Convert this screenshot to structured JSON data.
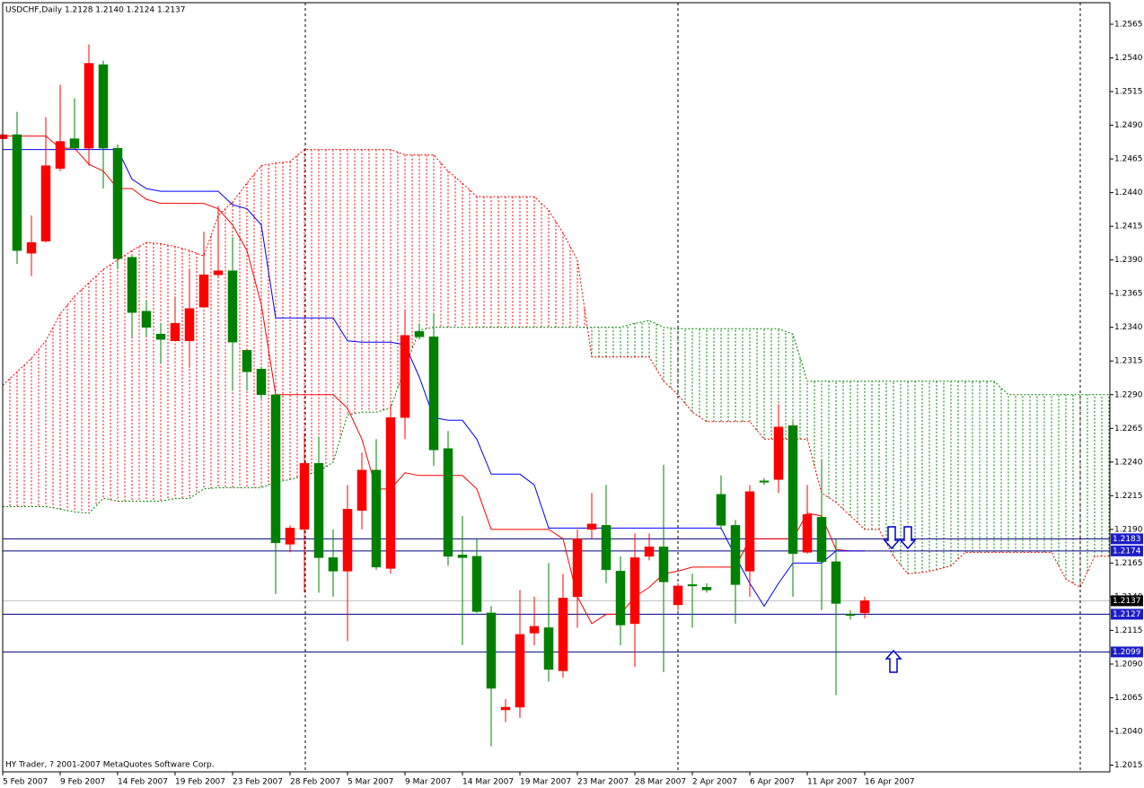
{
  "chart_data": {
    "type": "candlestick",
    "title": "USDCHF,Daily  1.2128 1.2140 1.2124 1.2137",
    "footer": "HY Trader, ? 2001-2007 MetaQuotes Software Corp.",
    "categories": [
      "5 Feb 2007",
      null,
      null,
      null,
      "9 Feb 2007",
      null,
      null,
      null,
      "14 Feb 2007",
      null,
      null,
      null,
      "19 Feb 2007",
      null,
      null,
      null,
      "23 Feb 2007",
      null,
      null,
      null,
      "28 Feb 2007",
      null,
      null,
      null,
      "5 Mar 2007",
      null,
      null,
      null,
      "9 Mar 2007",
      null,
      null,
      null,
      "14 Mar 2007",
      null,
      null,
      null,
      "19 Mar 2007",
      null,
      null,
      null,
      "23 Mar 2007",
      null,
      null,
      null,
      "28 Mar 2007",
      null,
      null,
      null,
      "2 Apr 2007",
      null,
      null,
      null,
      "6 Apr 2007",
      null,
      null,
      null,
      "11 Apr 2007",
      null,
      null,
      null,
      "16 Apr 2007",
      null,
      null,
      null,
      null,
      null,
      null,
      null,
      null,
      null,
      null,
      null,
      null,
      null,
      null,
      null,
      null,
      null
    ],
    "open": [
      1.248,
      1.2483,
      1.2395,
      1.2404,
      1.2458,
      1.248,
      1.2473,
      1.2535,
      1.2473,
      1.2392,
      1.2352,
      1.2335,
      1.233,
      1.233,
      1.2355,
      1.2379,
      1.2382,
      1.2323,
      1.2309,
      1.229,
      1.2179,
      1.219,
      1.2239,
      1.2169,
      1.2159,
      1.2204,
      1.2234,
      1.2161,
      1.2273,
      1.2337,
      1.2333,
      1.225,
      1.2171,
      1.217,
      1.2128,
      1.2056,
      1.2058,
      1.2113,
      1.2117,
      1.2085,
      1.214,
      1.219,
      1.2193,
      1.2159,
      1.212,
      1.217,
      1.2177,
      1.2134,
      1.2149,
      1.2147,
      1.2216,
      1.2193,
      1.2159,
      1.2226,
      1.2227,
      1.2267,
      1.2173,
      1.2199,
      1.2166,
      1.2127,
      1.2128,
      null,
      null,
      null,
      null,
      null,
      null,
      null,
      null,
      null,
      null,
      null,
      null,
      null,
      null,
      null,
      null,
      null
    ],
    "high": [
      1.2496,
      1.25,
      1.2423,
      1.2496,
      1.252,
      1.251,
      1.255,
      1.2538,
      1.2476,
      1.2393,
      1.236,
      1.2343,
      1.2363,
      1.2383,
      1.2411,
      1.243,
      1.2407,
      1.2323,
      1.2311,
      1.229,
      1.2193,
      1.226,
      1.2259,
      1.219,
      1.2223,
      1.2247,
      1.2257,
      1.2283,
      1.2353,
      1.2343,
      1.235,
      1.2263,
      1.22,
      1.2183,
      1.2133,
      1.2064,
      1.2145,
      1.214,
      1.2165,
      1.2157,
      1.219,
      1.2217,
      1.2223,
      1.217,
      1.2187,
      1.2187,
      1.2238,
      1.215,
      1.2157,
      1.215,
      1.223,
      1.2197,
      1.2223,
      1.2228,
      1.2283,
      1.227,
      1.2223,
      1.2242,
      1.2183,
      1.213,
      1.214,
      null,
      null,
      null,
      null,
      null,
      null,
      null,
      null,
      null,
      null,
      null,
      null,
      null,
      null,
      null,
      null,
      null
    ],
    "low": [
      1.2466,
      1.2387,
      1.2378,
      1.2403,
      1.2456,
      1.2473,
      1.246,
      1.2443,
      1.2383,
      1.2333,
      1.2333,
      1.2313,
      1.233,
      1.231,
      1.2355,
      1.2377,
      1.2293,
      1.2293,
      1.2287,
      1.2142,
      1.2173,
      1.2143,
      1.2143,
      1.214,
      1.2107,
      1.219,
      1.216,
      1.2157,
      1.2257,
      1.2331,
      1.2237,
      1.2163,
      1.2104,
      1.2128,
      1.2029,
      1.2047,
      1.205,
      1.2104,
      1.2077,
      1.208,
      1.2117,
      1.2183,
      1.215,
      1.2104,
      1.2088,
      1.2167,
      1.2084,
      1.213,
      1.2117,
      1.2143,
      1.219,
      1.212,
      1.214,
      1.2223,
      1.2217,
      1.214,
      1.2172,
      1.213,
      1.2067,
      1.2123,
      1.2124,
      null,
      null,
      null,
      null,
      null,
      null,
      null,
      null,
      null,
      null,
      null,
      null,
      null,
      null,
      null,
      null,
      null
    ],
    "close": [
      1.2483,
      1.2397,
      1.2403,
      1.246,
      1.2478,
      1.2473,
      1.2536,
      1.2473,
      1.2391,
      1.2351,
      1.234,
      1.2331,
      1.2343,
      1.2354,
      1.2379,
      1.2382,
      1.2329,
      1.2307,
      1.229,
      1.218,
      1.2191,
      1.2239,
      1.2169,
      1.2159,
      1.2205,
      1.2234,
      1.2162,
      1.2273,
      1.2334,
      1.2333,
      1.2249,
      1.217,
      1.2169,
      1.2129,
      1.2072,
      1.2058,
      1.2112,
      1.2118,
      1.2086,
      1.2139,
      1.2183,
      1.2194,
      1.216,
      1.2119,
      1.2169,
      1.2177,
      1.2151,
      1.2148,
      1.2148,
      1.2145,
      1.2193,
      1.2149,
      1.2218,
      1.2225,
      1.2266,
      1.2172,
      1.2201,
      1.2166,
      1.2135,
      1.2126,
      1.2137,
      null,
      null,
      null,
      null,
      null,
      null,
      null,
      null,
      null,
      null,
      null,
      null,
      null,
      null,
      null,
      null,
      null
    ],
    "up_color": "#ff0000",
    "down_color": "#008000",
    "indicators": [
      {
        "color": "#ff0000",
        "values": [
          1.2482,
          1.2482,
          1.2482,
          1.2482,
          1.2473,
          1.2473,
          1.2461,
          1.2456,
          1.2443,
          1.2443,
          1.2435,
          1.2432,
          1.2432,
          1.2432,
          1.2432,
          1.2428,
          1.2416,
          1.2397,
          1.2357,
          1.229,
          1.229,
          1.229,
          1.229,
          1.229,
          1.228,
          1.2257,
          1.222,
          1.222,
          1.2232,
          1.223,
          1.223,
          1.223,
          1.223,
          1.222,
          1.219,
          1.219,
          1.219,
          1.219,
          1.219,
          1.2183,
          1.214,
          1.212,
          1.2127,
          1.2127,
          1.214,
          1.2147,
          1.2157,
          1.2159,
          1.2162,
          1.2162,
          1.2162,
          1.2162,
          1.2183,
          1.2183,
          1.2183,
          1.2183,
          1.2202,
          1.22,
          1.2175,
          1.2174,
          1.2174,
          null,
          null,
          null,
          null,
          null,
          null,
          null,
          null,
          null,
          null,
          null,
          null,
          null,
          null,
          null,
          null,
          null
        ]
      },
      {
        "color": "#0000ff",
        "values": [
          1.2472,
          1.2472,
          1.2472,
          1.2472,
          1.2472,
          1.2472,
          1.2472,
          1.2472,
          1.2472,
          1.245,
          1.2443,
          1.2441,
          1.2441,
          1.2441,
          1.2441,
          1.2441,
          1.2431,
          1.2428,
          1.2416,
          1.2347,
          1.2347,
          1.2347,
          1.2347,
          1.2347,
          1.233,
          1.2329,
          1.2329,
          1.2329,
          1.2327,
          1.2303,
          1.2273,
          1.2271,
          1.2271,
          1.2257,
          1.2231,
          1.2231,
          1.2231,
          1.2223,
          1.2191,
          1.2191,
          1.2191,
          1.2191,
          1.2191,
          1.2191,
          1.2191,
          1.2191,
          1.2191,
          1.2191,
          1.2191,
          1.2191,
          1.2191,
          1.217,
          1.215,
          1.2133,
          1.215,
          1.2165,
          1.2165,
          1.2165,
          1.2174,
          1.2174,
          1.2174,
          null,
          null,
          null,
          null,
          null,
          null,
          null,
          null,
          null,
          null,
          null,
          null,
          null,
          null,
          null,
          null,
          null
        ]
      }
    ],
    "cloud": {
      "span_a_color": "#ff0000",
      "span_b_color": "#008000",
      "span_a": [
        1.2297,
        1.2307,
        1.2317,
        1.233,
        1.235,
        1.2363,
        1.2373,
        1.2383,
        1.239,
        1.2397,
        1.2403,
        1.2402,
        1.24,
        1.2397,
        1.2393,
        1.2423,
        1.2433,
        1.2447,
        1.246,
        1.2462,
        1.2463,
        1.2472,
        1.2472,
        1.2472,
        1.2472,
        1.2472,
        1.2472,
        1.2472,
        1.2468,
        1.2468,
        1.2468,
        1.2456,
        1.2447,
        1.2437,
        1.2437,
        1.2437,
        1.2437,
        1.2437,
        1.2427,
        1.241,
        1.239,
        1.2318,
        1.2318,
        1.2318,
        1.2318,
        1.2318,
        1.23,
        1.229,
        1.2277,
        1.227,
        1.227,
        1.227,
        1.227,
        1.2257,
        1.2257,
        1.2257,
        1.2257,
        1.2217,
        1.221,
        1.22,
        1.219,
        1.219,
        1.217,
        1.2157,
        1.2158,
        1.216,
        1.2163,
        1.2173,
        1.2173,
        1.2173,
        1.2173,
        1.2173,
        1.2173,
        1.2173,
        1.2153,
        1.2147,
        1.217,
        1.217
      ],
      "span_b": [
        1.2207,
        1.2207,
        1.2207,
        1.2207,
        1.2205,
        1.2203,
        1.2202,
        1.2213,
        1.2211,
        1.2211,
        1.2211,
        1.2211,
        1.2213,
        1.2213,
        1.222,
        1.2221,
        1.2221,
        1.2221,
        1.2221,
        1.2225,
        1.2227,
        1.223,
        1.2233,
        1.224,
        1.2275,
        1.2277,
        1.2277,
        1.228,
        1.231,
        1.2338,
        1.234,
        1.234,
        1.234,
        1.234,
        1.234,
        1.234,
        1.234,
        1.234,
        1.234,
        1.234,
        1.234,
        1.234,
        1.234,
        1.234,
        1.2343,
        1.2345,
        1.234,
        1.2339,
        1.2339,
        1.2339,
        1.2339,
        1.2339,
        1.2339,
        1.2339,
        1.2339,
        1.2335,
        1.23,
        1.23,
        1.23,
        1.23,
        1.23,
        1.23,
        1.23,
        1.23,
        1.23,
        1.23,
        1.23,
        1.23,
        1.23,
        1.23,
        1.229,
        1.229,
        1.229,
        1.229,
        1.229,
        1.229,
        1.229,
        1.229
      ]
    },
    "hlines": [
      1.2183,
      1.2174,
      1.2127,
      1.2099
    ],
    "hline_color": "#000080",
    "hline_label_color": "#1c1cc8",
    "last_price": 1.2137,
    "last_price_line_color": "#c0c0c0",
    "ylim": [
      1.201,
      1.2581
    ],
    "yticks": [
      {
        "value": 1.2565,
        "label": "1.2565"
      },
      {
        "value": 1.254,
        "label": "1.2540"
      },
      {
        "value": 1.2515,
        "label": "1.2515"
      },
      {
        "value": 1.249,
        "label": "1.2490"
      },
      {
        "value": 1.2465,
        "label": "1.2465"
      },
      {
        "value": 1.244,
        "label": "1.2440"
      },
      {
        "value": 1.2415,
        "label": "1.2415"
      },
      {
        "value": 1.239,
        "label": "1.2390"
      },
      {
        "value": 1.2365,
        "label": "1.2365"
      },
      {
        "value": 1.234,
        "label": "1.2340"
      },
      {
        "value": 1.2315,
        "label": "1.2315"
      },
      {
        "value": 1.229,
        "label": "1.2290"
      },
      {
        "value": 1.2265,
        "label": "1.2265"
      },
      {
        "value": 1.224,
        "label": "1.2240"
      },
      {
        "value": 1.2215,
        "label": "1.2215"
      },
      {
        "value": 1.219,
        "label": "1.2190"
      },
      {
        "value": 1.2165,
        "label": "1.2165"
      },
      {
        "value": 1.214,
        "label": "1.2140"
      },
      {
        "value": 1.2115,
        "label": "1.2115"
      },
      {
        "value": 1.209,
        "label": "1.2090"
      },
      {
        "value": 1.2065,
        "label": "1.2065"
      },
      {
        "value": 1.204,
        "label": "1.2040"
      },
      {
        "value": 1.2015,
        "label": "1.2015"
      }
    ]
  }
}
